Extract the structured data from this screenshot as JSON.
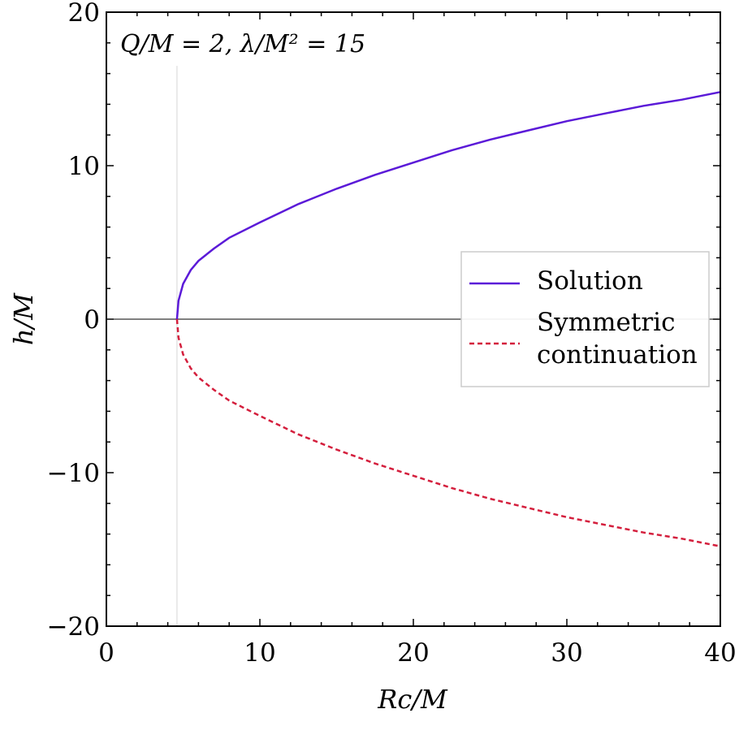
{
  "chart_data": {
    "type": "line",
    "title": "",
    "annotation": "Q/M = 2, λ/M² = 15",
    "xlabel": "Rc/M",
    "ylabel": "h/M",
    "xlim": [
      0,
      40
    ],
    "ylim": [
      -20,
      20
    ],
    "xticks": [
      0,
      10,
      20,
      30,
      40
    ],
    "yticks": [
      -20,
      -10,
      0,
      10,
      20
    ],
    "xtick_labels": [
      "0",
      "10",
      "20",
      "30",
      "40"
    ],
    "ytick_labels": [
      "−20",
      "−10",
      "0",
      "10",
      "20"
    ],
    "vertical_line_x": 4.6,
    "horizontal_line_y": 0,
    "legend_position": "center-right",
    "series": [
      {
        "name": "Solution",
        "style": "solid",
        "color": "#5b1ad8",
        "x": [
          4.6,
          4.7,
          5.0,
          5.5,
          6.0,
          7.0,
          8.0,
          10.0,
          12.5,
          15.0,
          17.5,
          20.0,
          22.5,
          25.0,
          27.5,
          30.0,
          32.5,
          35.0,
          37.5,
          40.0
        ],
        "y": [
          0.0,
          1.2,
          2.3,
          3.2,
          3.8,
          4.6,
          5.3,
          6.3,
          7.5,
          8.5,
          9.4,
          10.2,
          11.0,
          11.7,
          12.3,
          12.9,
          13.4,
          13.9,
          14.3,
          14.8
        ]
      },
      {
        "name": "Symmetric continuation",
        "style": "dashed",
        "color": "#d41f3d",
        "x": [
          4.6,
          4.7,
          5.0,
          5.5,
          6.0,
          7.0,
          8.0,
          10.0,
          12.5,
          15.0,
          17.5,
          20.0,
          22.5,
          25.0,
          27.5,
          30.0,
          32.5,
          35.0,
          37.5,
          40.0
        ],
        "y": [
          0.0,
          -1.2,
          -2.3,
          -3.2,
          -3.8,
          -4.6,
          -5.3,
          -6.3,
          -7.5,
          -8.5,
          -9.4,
          -10.2,
          -11.0,
          -11.7,
          -12.3,
          -12.9,
          -13.4,
          -13.9,
          -14.3,
          -14.8
        ]
      }
    ],
    "legend": {
      "entries": [
        {
          "label_lines": [
            "Solution"
          ],
          "style": "solid",
          "color": "#5b1ad8"
        },
        {
          "label_lines": [
            "Symmetric",
            "continuation"
          ],
          "style": "dashed",
          "color": "#d41f3d"
        }
      ]
    }
  }
}
